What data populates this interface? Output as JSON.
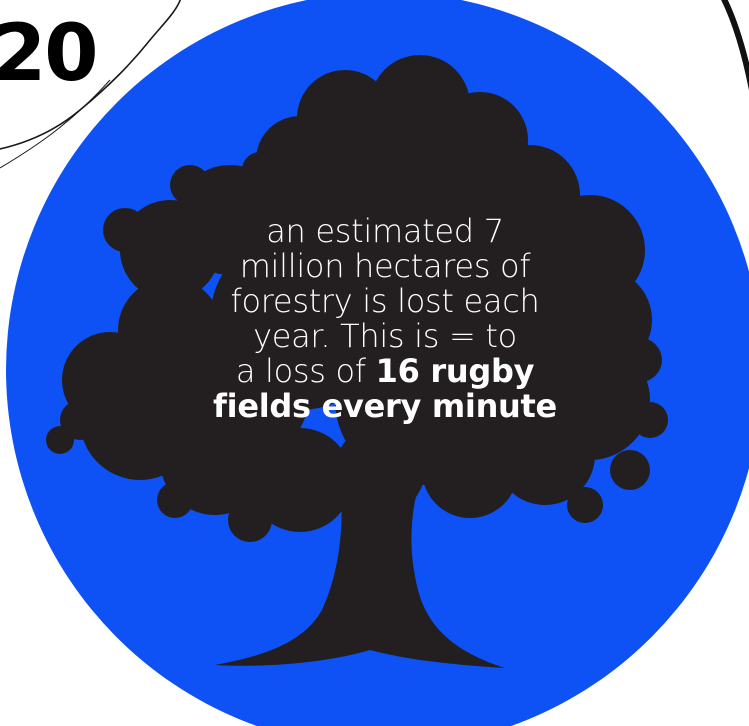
{
  "number_badge": "20",
  "fact": {
    "line1": "an estimated 7",
    "line2": "million hectares of",
    "line3": "forestry is lost each",
    "line4": "year. This is = to",
    "line5_prefix": "a loss of ",
    "line5_bold": "16 rugby",
    "line6_bold": "fields every minute"
  },
  "colors": {
    "circle": "#0e52f5",
    "tree": "#231f20",
    "text": "#ffffff",
    "outline": "#111111"
  },
  "icons": {
    "tree": "tree-silhouette-icon"
  }
}
